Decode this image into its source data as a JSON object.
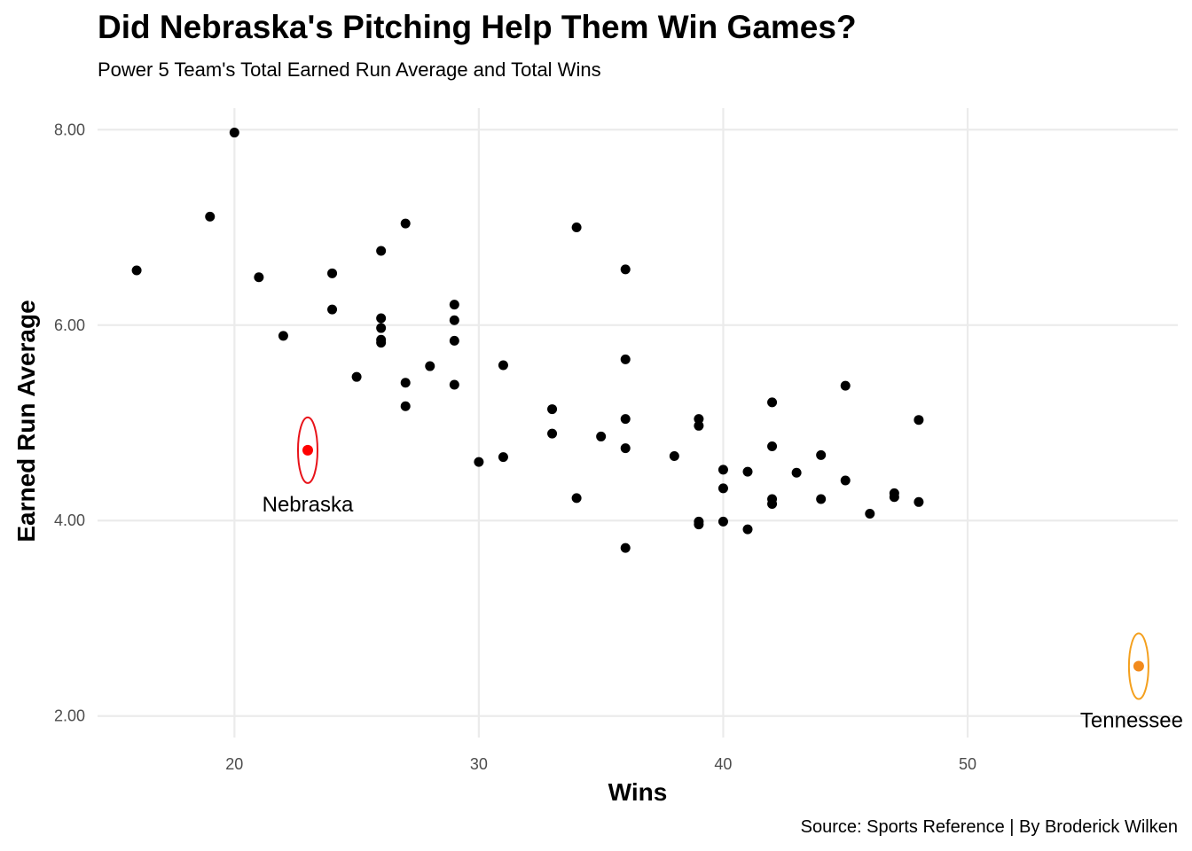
{
  "chart_data": {
    "type": "scatter",
    "title": "Did Nebraska's Pitching Help Them Win Games?",
    "subtitle": "Power 5 Team's Total Earned Run Average and Total Wins",
    "caption": "Source: Sports Reference | By Broderick Wilken",
    "xlabel": "Wins",
    "ylabel": "Earned Run Average",
    "xlim": [
      14.4,
      58.6
    ],
    "ylim": [
      1.78,
      8.22
    ],
    "x_ticks": [
      "20",
      "30",
      "40",
      "50"
    ],
    "x_tick_values": [
      20,
      30,
      40,
      50
    ],
    "y_ticks": [
      "2.00",
      "4.00",
      "6.00",
      "8.00"
    ],
    "y_tick_values": [
      2,
      4,
      6,
      8
    ],
    "grid": true,
    "point_color": "#000000",
    "points": [
      {
        "x": 16,
        "y": 6.56
      },
      {
        "x": 19,
        "y": 7.11
      },
      {
        "x": 20,
        "y": 7.97
      },
      {
        "x": 21,
        "y": 6.49
      },
      {
        "x": 22,
        "y": 5.89
      },
      {
        "x": 24,
        "y": 6.53
      },
      {
        "x": 24,
        "y": 6.16
      },
      {
        "x": 25,
        "y": 5.47
      },
      {
        "x": 26,
        "y": 6.76
      },
      {
        "x": 26,
        "y": 6.07
      },
      {
        "x": 26,
        "y": 5.97
      },
      {
        "x": 26,
        "y": 5.85
      },
      {
        "x": 26,
        "y": 5.82
      },
      {
        "x": 27,
        "y": 7.04
      },
      {
        "x": 27,
        "y": 5.41
      },
      {
        "x": 27,
        "y": 5.17
      },
      {
        "x": 28,
        "y": 5.58
      },
      {
        "x": 29,
        "y": 6.21
      },
      {
        "x": 29,
        "y": 6.05
      },
      {
        "x": 29,
        "y": 5.84
      },
      {
        "x": 29,
        "y": 5.39
      },
      {
        "x": 30,
        "y": 4.6
      },
      {
        "x": 31,
        "y": 5.59
      },
      {
        "x": 31,
        "y": 4.65
      },
      {
        "x": 33,
        "y": 5.14
      },
      {
        "x": 33,
        "y": 4.89
      },
      {
        "x": 34,
        "y": 7.0
      },
      {
        "x": 34,
        "y": 4.23
      },
      {
        "x": 35,
        "y": 4.86
      },
      {
        "x": 36,
        "y": 6.57
      },
      {
        "x": 36,
        "y": 5.65
      },
      {
        "x": 36,
        "y": 5.04
      },
      {
        "x": 36,
        "y": 4.74
      },
      {
        "x": 36,
        "y": 3.72
      },
      {
        "x": 38,
        "y": 4.66
      },
      {
        "x": 39,
        "y": 5.04
      },
      {
        "x": 39,
        "y": 4.97
      },
      {
        "x": 39,
        "y": 3.99
      },
      {
        "x": 39,
        "y": 3.96
      },
      {
        "x": 40,
        "y": 4.52
      },
      {
        "x": 40,
        "y": 4.33
      },
      {
        "x": 40,
        "y": 3.99
      },
      {
        "x": 41,
        "y": 4.5
      },
      {
        "x": 41,
        "y": 3.91
      },
      {
        "x": 42,
        "y": 5.21
      },
      {
        "x": 42,
        "y": 4.76
      },
      {
        "x": 42,
        "y": 4.22
      },
      {
        "x": 42,
        "y": 4.17
      },
      {
        "x": 43,
        "y": 4.49
      },
      {
        "x": 44,
        "y": 4.67
      },
      {
        "x": 44,
        "y": 4.22
      },
      {
        "x": 45,
        "y": 5.38
      },
      {
        "x": 45,
        "y": 4.41
      },
      {
        "x": 46,
        "y": 4.07
      },
      {
        "x": 47,
        "y": 4.28
      },
      {
        "x": 47,
        "y": 4.24
      },
      {
        "x": 48,
        "y": 5.03
      },
      {
        "x": 48,
        "y": 4.19
      }
    ],
    "highlights": [
      {
        "label": "Nebraska",
        "x": 23,
        "y": 4.72,
        "color": "#ff0000",
        "ring_color": "#e8131a"
      },
      {
        "label": "Tennessee",
        "x": 57,
        "y": 2.51,
        "color": "#f28a1c",
        "ring_color": "#f4a01e"
      }
    ]
  }
}
